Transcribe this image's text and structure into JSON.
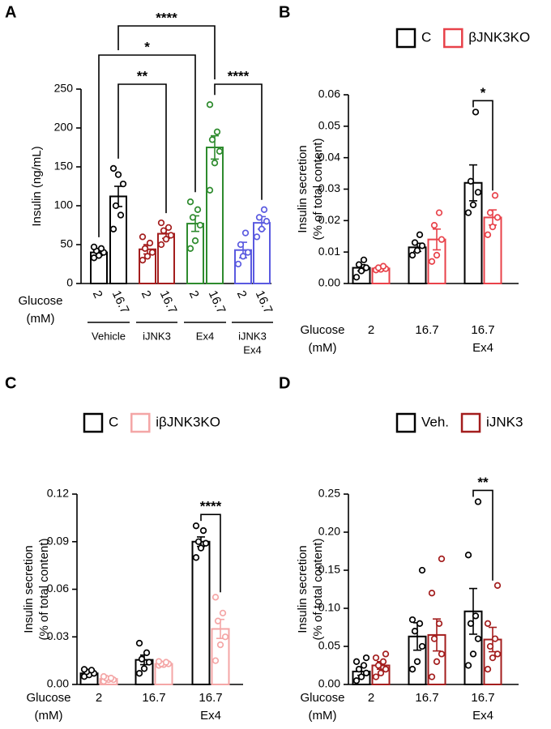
{
  "chart_data": [
    {
      "type": "bar",
      "panel": "A",
      "ylabel": [
        "Insulin (ng/mL)"
      ],
      "xlabel": [
        "Glucose",
        "(mM)"
      ],
      "categories": [
        "2",
        "16.7",
        "2",
        "16.7",
        "2",
        "16.7",
        "2",
        "16.7"
      ],
      "groups": [
        [
          "Vehicle"
        ],
        [
          "iJNK3"
        ],
        [
          "Ex4"
        ],
        [
          "iJNK3",
          "Ex4"
        ]
      ],
      "values": [
        40,
        112,
        44,
        64,
        77,
        175,
        43,
        78
      ],
      "errors": [
        4,
        13,
        6,
        6,
        10,
        15,
        10,
        8
      ],
      "points": [
        [
          33,
          36,
          40,
          42,
          45,
          47
        ],
        [
          148,
          140,
          128,
          100,
          88,
          70
        ],
        [
          30,
          35,
          40,
          45,
          52,
          60
        ],
        [
          50,
          57,
          62,
          68,
          72,
          78
        ],
        [
          45,
          55,
          75,
          85,
          95,
          105
        ],
        [
          120,
          155,
          170,
          185,
          195,
          230
        ],
        [
          25,
          35,
          40,
          50,
          65
        ],
        [
          60,
          70,
          80,
          85,
          95
        ]
      ],
      "colors": [
        "#000000",
        "#000000",
        "#a31d1d",
        "#a31d1d",
        "#2e8b2e",
        "#2e8b2e",
        "#5a5ae0",
        "#5a5ae0"
      ],
      "ylim": [
        0,
        250
      ],
      "yticks": [
        0,
        50,
        100,
        150,
        200,
        250
      ],
      "annotations": [
        {
          "text": "****",
          "from": 1,
          "to": 5
        },
        {
          "text": "*",
          "from": 0,
          "to": 4
        },
        {
          "text": "**",
          "from": 1,
          "to": 3
        },
        {
          "text": "****",
          "from": 5,
          "to": 7
        }
      ]
    },
    {
      "type": "grouped_bar",
      "panel": "B",
      "ylabel": [
        "Insulin secretion",
        "(% of total content)"
      ],
      "xlabel": [
        "Glucose",
        "(mM)"
      ],
      "categories": [
        [
          "2"
        ],
        [
          "16.7"
        ],
        [
          "16.7",
          "Ex4"
        ]
      ],
      "series": [
        {
          "name": "C",
          "color": "#000000",
          "values": [
            0.005,
            0.0115,
            0.032
          ],
          "errors": [
            0.001,
            0.0013,
            0.0057
          ],
          "points": [
            [
              0.002,
              0.004,
              0.005,
              0.006,
              0.0075
            ],
            [
              0.009,
              0.0105,
              0.012,
              0.013,
              0.0155
            ],
            [
              0.0225,
              0.025,
              0.029,
              0.0325,
              0.0545
            ]
          ]
        },
        {
          "name": "βJNK3KO",
          "color": "#e8424a",
          "values": [
            0.0048,
            0.014,
            0.021
          ],
          "errors": [
            0.0004,
            0.0033,
            0.0024
          ],
          "points": [
            [
              0.0043,
              0.0045,
              0.0047,
              0.005,
              0.0055
            ],
            [
              0.007,
              0.009,
              0.014,
              0.0185,
              0.0225
            ],
            [
              0.0155,
              0.018,
              0.021,
              0.0225,
              0.028
            ]
          ]
        }
      ],
      "ylim": [
        0,
        0.06
      ],
      "yticks": [
        {
          "value": 0,
          "label": "0.00"
        },
        0.01,
        0.02,
        0.03,
        0.04,
        0.05,
        0.06
      ],
      "annotations": [
        {
          "text": "*",
          "category": 2
        }
      ]
    },
    {
      "type": "grouped_bar",
      "panel": "C",
      "ylabel": [
        "Insulin secretion",
        "(% of total content)"
      ],
      "xlabel": [
        "Glucose",
        "(mM)"
      ],
      "categories": [
        [
          "2"
        ],
        [
          "16.7"
        ],
        [
          "16.7",
          "Ex4"
        ]
      ],
      "series": [
        {
          "name": "C",
          "color": "#000000",
          "values": [
            0.007,
            0.0155,
            0.09
          ],
          "errors": [
            0.001,
            0.003,
            0.003
          ],
          "points": [
            [
              0.005,
              0.006,
              0.007,
              0.008,
              0.009,
              0.0095
            ],
            [
              0.007,
              0.01,
              0.014,
              0.016,
              0.02,
              0.026
            ],
            [
              0.08,
              0.086,
              0.089,
              0.09,
              0.097,
              0.1
            ]
          ]
        },
        {
          "name": "iβJNK3KO",
          "color": "#f4a6a6",
          "values": [
            0.0035,
            0.013,
            0.035
          ],
          "errors": [
            0.0008,
            0.0008,
            0.006
          ],
          "points": [
            [
              0.002,
              0.003,
              0.003,
              0.004,
              0.004,
              0.005
            ],
            [
              0.012,
              0.0125,
              0.013,
              0.013,
              0.014,
              0.0145
            ],
            [
              0.015,
              0.025,
              0.03,
              0.04,
              0.045,
              0.055
            ]
          ]
        }
      ],
      "ylim": [
        0,
        0.12
      ],
      "yticks": [
        {
          "value": 0,
          "label": "0.00"
        },
        0.03,
        0.06,
        0.09,
        0.12
      ],
      "annotations": [
        {
          "text": "****",
          "category": 2
        }
      ]
    },
    {
      "type": "grouped_bar",
      "panel": "D",
      "ylabel": [
        "Insulin secretion",
        "(% of total content)"
      ],
      "xlabel": [
        "Glucose",
        "(mM)"
      ],
      "categories": [
        [
          "2"
        ],
        [
          "16.7"
        ],
        [
          "16.7",
          "Ex4"
        ]
      ],
      "series": [
        {
          "name": "Veh.",
          "color": "#000000",
          "values": [
            0.017,
            0.063,
            0.096
          ],
          "errors": [
            0.005,
            0.018,
            0.03
          ],
          "points": [
            [
              0.005,
              0.01,
              0.015,
              0.02,
              0.025,
              0.03,
              0.035
            ],
            [
              0.02,
              0.03,
              0.05,
              0.07,
              0.08,
              0.085,
              0.15
            ],
            [
              0.025,
              0.04,
              0.06,
              0.08,
              0.09,
              0.17,
              0.24
            ]
          ]
        },
        {
          "name": "iJNK3",
          "color": "#a31d1d",
          "values": [
            0.025,
            0.065,
            0.059
          ],
          "errors": [
            0.005,
            0.021,
            0.016
          ],
          "points": [
            [
              0.01,
              0.015,
              0.02,
              0.025,
              0.03,
              0.035,
              0.04
            ],
            [
              0.01,
              0.03,
              0.04,
              0.06,
              0.08,
              0.12,
              0.165
            ],
            [
              0.02,
              0.035,
              0.04,
              0.05,
              0.06,
              0.08,
              0.13
            ]
          ]
        }
      ],
      "ylim": [
        0,
        0.25
      ],
      "yticks": [
        {
          "value": 0,
          "label": "0.00"
        },
        0.05,
        {
          "value": 0.1,
          "label": "0.10"
        },
        0.15,
        {
          "value": 0.2,
          "label": "0.20"
        },
        0.25
      ],
      "annotations": [
        {
          "text": "**",
          "category": 2
        }
      ]
    }
  ]
}
